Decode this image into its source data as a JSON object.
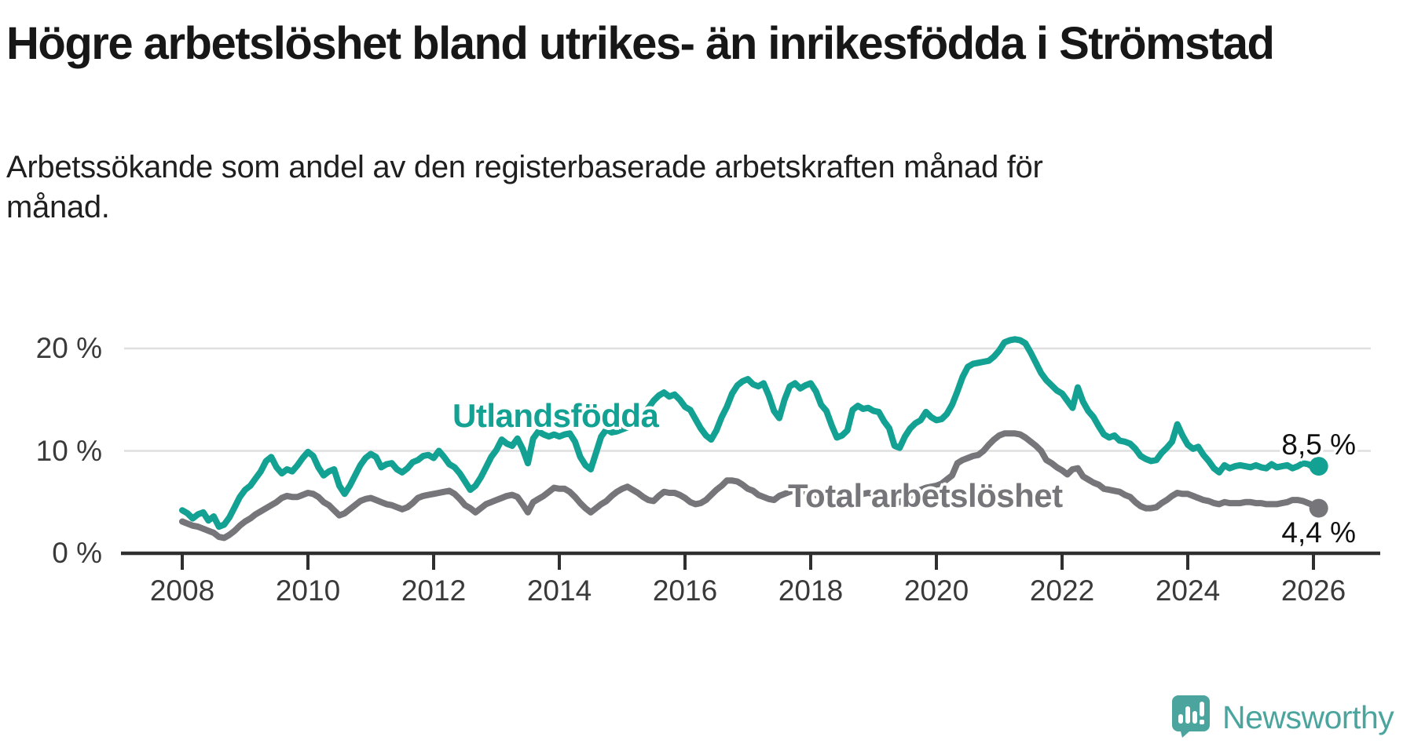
{
  "header": {
    "title": "Högre arbetslöshet bland utrikes- än inrikesfödda i Strömstad",
    "subtitle": "Arbetssökande som andel av den registerbaserade arbetskraften månad för månad."
  },
  "chart_data": {
    "type": "line",
    "title": "Högre arbetslöshet bland utrikes- än inrikesfödda i Strömstad",
    "subtitle": "Arbetssökande som andel av den registerbaserade arbetskraften månad för månad.",
    "unit": "%",
    "x_start_year": 2008,
    "x_start_month": 1,
    "points_per_year": 12,
    "xlim": [
      2007.55,
      2026.6
    ],
    "ylim": [
      0,
      22
    ],
    "grid": "horizontal",
    "x_axis": {
      "ticks": [
        {
          "year": 2008,
          "label": "2008"
        },
        {
          "year": 2010,
          "label": "2010"
        },
        {
          "year": 2012,
          "label": "2012"
        },
        {
          "year": 2014,
          "label": "2014"
        },
        {
          "year": 2016,
          "label": "2016"
        },
        {
          "year": 2018,
          "label": "2018"
        },
        {
          "year": 2020,
          "label": "2020"
        },
        {
          "year": 2022,
          "label": "2022"
        },
        {
          "year": 2024,
          "label": "2024"
        },
        {
          "year": 2026,
          "label": "2026"
        }
      ]
    },
    "y_axis": {
      "ticks": [
        {
          "value": 0,
          "label": "0 %"
        },
        {
          "value": 10,
          "label": "10 %"
        },
        {
          "value": 20,
          "label": "20 %"
        }
      ]
    },
    "series": [
      {
        "name": "Utlandsfödda",
        "color": "#12a192",
        "end_label": "8,5 %",
        "end_value": 8.5,
        "values": [
          4.2,
          3.9,
          3.4,
          3.8,
          4.0,
          3.2,
          3.6,
          2.6,
          2.8,
          3.5,
          4.5,
          5.5,
          6.2,
          6.6,
          7.3,
          8.0,
          9.0,
          9.4,
          8.4,
          7.8,
          8.2,
          8.0,
          8.6,
          9.3,
          9.9,
          9.5,
          8.4,
          7.6,
          8.0,
          8.2,
          6.6,
          5.8,
          6.6,
          7.6,
          8.6,
          9.3,
          9.7,
          9.4,
          8.4,
          8.7,
          8.8,
          8.2,
          7.9,
          8.3,
          8.9,
          9.1,
          9.5,
          9.6,
          9.3,
          10.0,
          9.4,
          8.7,
          8.4,
          7.8,
          7.0,
          6.2,
          6.6,
          7.4,
          8.4,
          9.4,
          10.1,
          11.1,
          10.7,
          10.5,
          11.2,
          10.2,
          8.8,
          11.2,
          11.9,
          11.6,
          11.4,
          11.6,
          11.4,
          11.6,
          11.7,
          10.9,
          9.4,
          8.6,
          8.2,
          9.8,
          11.4,
          12.1,
          11.8,
          11.9,
          12.1,
          12.3,
          12.6,
          13.0,
          13.6,
          14.2,
          14.9,
          15.4,
          15.7,
          15.3,
          15.5,
          15.0,
          14.3,
          14.0,
          13.1,
          12.2,
          11.5,
          11.1,
          12.0,
          13.3,
          14.3,
          15.6,
          16.4,
          16.8,
          17.0,
          16.5,
          16.3,
          16.6,
          15.4,
          13.9,
          13.2,
          15.0,
          16.3,
          16.6,
          16.1,
          16.4,
          16.6,
          15.8,
          14.5,
          13.9,
          12.5,
          11.3,
          11.5,
          12.0,
          14.0,
          14.4,
          14.1,
          14.2,
          13.9,
          13.8,
          12.9,
          12.2,
          10.5,
          10.3,
          11.4,
          12.2,
          12.7,
          13.0,
          13.8,
          13.3,
          13.0,
          13.1,
          13.6,
          14.5,
          15.8,
          17.2,
          18.2,
          18.5,
          18.6,
          18.7,
          18.8,
          19.2,
          19.8,
          20.6,
          20.8,
          20.9,
          20.8,
          20.5,
          19.6,
          18.6,
          17.6,
          16.9,
          16.4,
          15.9,
          15.6,
          14.9,
          14.2,
          16.2,
          14.8,
          13.9,
          13.3,
          12.4,
          11.6,
          11.3,
          11.5,
          11.0,
          10.9,
          10.7,
          10.2,
          9.5,
          9.2,
          9.0,
          9.1,
          9.8,
          10.3,
          10.9,
          12.6,
          11.5,
          10.6,
          10.2,
          10.4,
          9.6,
          9.0,
          8.3,
          7.9,
          8.6,
          8.3,
          8.5,
          8.6,
          8.5,
          8.4,
          8.6,
          8.4,
          8.3,
          8.7,
          8.4,
          8.5,
          8.6,
          8.3,
          8.5,
          8.8,
          8.7,
          8.4,
          8.5
        ]
      },
      {
        "name": "Total arbetslöshet",
        "color": "#76767a",
        "end_label": "4,4 %",
        "end_value": 4.4,
        "values": [
          3.1,
          2.9,
          2.7,
          2.6,
          2.4,
          2.2,
          2.0,
          1.6,
          1.5,
          1.8,
          2.2,
          2.7,
          3.1,
          3.4,
          3.8,
          4.1,
          4.4,
          4.7,
          5.0,
          5.4,
          5.6,
          5.5,
          5.5,
          5.7,
          5.9,
          5.8,
          5.5,
          5.0,
          4.7,
          4.2,
          3.7,
          3.9,
          4.3,
          4.7,
          5.1,
          5.3,
          5.4,
          5.2,
          5.0,
          4.8,
          4.7,
          4.5,
          4.3,
          4.5,
          4.9,
          5.4,
          5.6,
          5.7,
          5.8,
          5.9,
          6.0,
          6.1,
          5.8,
          5.3,
          4.7,
          4.4,
          4.0,
          4.4,
          4.8,
          5.0,
          5.2,
          5.4,
          5.6,
          5.7,
          5.5,
          4.8,
          4.0,
          5.0,
          5.3,
          5.6,
          6.0,
          6.4,
          6.3,
          6.3,
          6.0,
          5.5,
          4.9,
          4.4,
          4.0,
          4.4,
          4.8,
          5.1,
          5.6,
          6.0,
          6.3,
          6.5,
          6.2,
          5.9,
          5.5,
          5.2,
          5.1,
          5.6,
          6.0,
          5.9,
          5.9,
          5.7,
          5.4,
          5.0,
          4.8,
          4.9,
          5.2,
          5.7,
          6.2,
          6.6,
          7.1,
          7.1,
          7.0,
          6.7,
          6.3,
          6.1,
          5.7,
          5.5,
          5.3,
          5.2,
          5.6,
          5.8,
          6.0,
          6.2,
          6.1,
          6.0,
          5.9,
          5.7,
          5.4,
          5.2,
          5.0,
          4.9,
          5.0,
          5.2,
          5.5,
          5.7,
          5.8,
          5.9,
          5.8,
          5.6,
          5.4,
          5.2,
          5.1,
          5.0,
          5.3,
          5.6,
          5.9,
          6.2,
          6.4,
          6.5,
          6.6,
          6.8,
          7.2,
          7.6,
          8.8,
          9.1,
          9.3,
          9.5,
          9.6,
          10.0,
          10.6,
          11.1,
          11.5,
          11.7,
          11.7,
          11.7,
          11.6,
          11.3,
          10.9,
          10.5,
          10.0,
          9.1,
          8.8,
          8.4,
          8.1,
          7.7,
          8.2,
          8.3,
          7.5,
          7.2,
          6.9,
          6.7,
          6.3,
          6.2,
          6.1,
          6.0,
          5.7,
          5.5,
          5.0,
          4.6,
          4.4,
          4.4,
          4.5,
          4.9,
          5.2,
          5.6,
          5.9,
          5.8,
          5.8,
          5.6,
          5.4,
          5.2,
          5.1,
          4.9,
          4.8,
          5.0,
          4.9,
          4.9,
          4.9,
          5.0,
          5.0,
          4.9,
          4.9,
          4.8,
          4.8,
          4.8,
          4.9,
          5.0,
          5.2,
          5.2,
          5.1,
          4.9,
          4.7,
          4.4
        ]
      }
    ],
    "legend_position": "inline-labels"
  },
  "branding": {
    "logo_text": "Newsworthy",
    "logo_icon": "newsworthy-speech-bubble-chart-icon",
    "logo_color": "#4ba59e"
  },
  "colors": {
    "background": "#ffffff",
    "gridline": "#dfdfdf",
    "axis": "#2f2f2f",
    "text_dark": "#171717",
    "tick_label": "#3a3a3a",
    "series_teal": "#12a192",
    "series_gray": "#76767a"
  }
}
